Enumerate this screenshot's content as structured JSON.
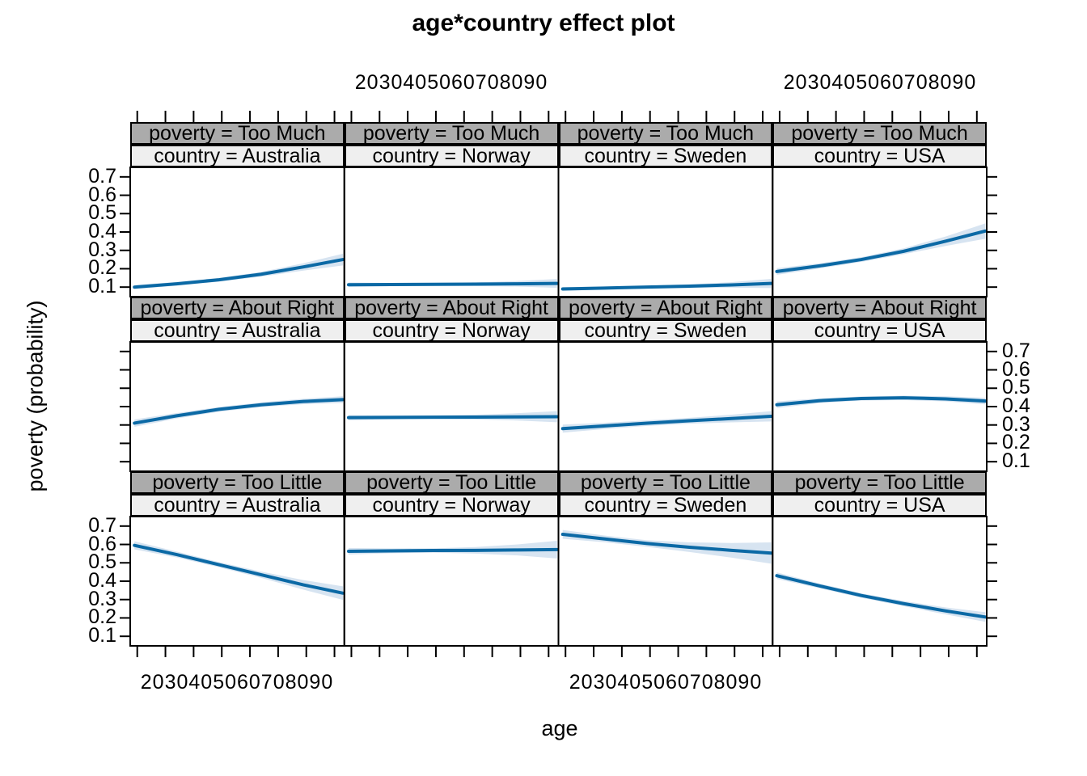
{
  "chart_data": {
    "type": "line",
    "title": "age*country effect plot",
    "xlabel": "age",
    "ylabel": "poverty (probability)",
    "facet_row_variable": "poverty",
    "facet_col_variable": "country",
    "facet_rows": [
      "Too Much",
      "About Right",
      "Too Little"
    ],
    "facet_cols": [
      "Australia",
      "Norway",
      "Sweden",
      "USA"
    ],
    "x_ticks": [
      20,
      30,
      40,
      50,
      60,
      70,
      80,
      90
    ],
    "x_tick_combined": "2030405060708090",
    "y_ticks": [
      "0.1",
      "0.2",
      "0.3",
      "0.4",
      "0.5",
      "0.6",
      "0.7"
    ],
    "xlim": [
      17.5,
      93.5
    ],
    "ylim": [
      0.048,
      0.752
    ],
    "grid": false,
    "legend": null,
    "ages": [
      19,
      34,
      49,
      64,
      79,
      93
    ],
    "panels": [
      {
        "poverty": "Too Much",
        "country": "Australia",
        "row_label": "poverty = Too Much",
        "col_label": "country = Australia",
        "fit": [
          0.1,
          0.118,
          0.14,
          0.17,
          0.21,
          0.25
        ],
        "lower": [
          0.088,
          0.108,
          0.13,
          0.157,
          0.19,
          0.218
        ],
        "upper": [
          0.112,
          0.128,
          0.15,
          0.183,
          0.23,
          0.282
        ]
      },
      {
        "poverty": "Too Much",
        "country": "Norway",
        "row_label": "poverty = Too Much",
        "col_label": "country = Norway",
        "fit": [
          0.113,
          0.114,
          0.115,
          0.116,
          0.118,
          0.12
        ],
        "lower": [
          0.101,
          0.105,
          0.107,
          0.106,
          0.103,
          0.096
        ],
        "upper": [
          0.125,
          0.123,
          0.123,
          0.126,
          0.133,
          0.144
        ]
      },
      {
        "poverty": "Too Much",
        "country": "Sweden",
        "row_label": "poverty = Too Much",
        "col_label": "country = Sweden",
        "fit": [
          0.09,
          0.095,
          0.1,
          0.105,
          0.112,
          0.12
        ],
        "lower": [
          0.08,
          0.087,
          0.092,
          0.095,
          0.097,
          0.095
        ],
        "upper": [
          0.1,
          0.103,
          0.108,
          0.115,
          0.127,
          0.145
        ]
      },
      {
        "poverty": "Too Much",
        "country": "USA",
        "row_label": "poverty = Too Much",
        "col_label": "country = USA",
        "fit": [
          0.185,
          0.215,
          0.25,
          0.295,
          0.35,
          0.405
        ],
        "lower": [
          0.167,
          0.201,
          0.237,
          0.279,
          0.324,
          0.363
        ],
        "upper": [
          0.203,
          0.229,
          0.263,
          0.311,
          0.376,
          0.447
        ]
      },
      {
        "poverty": "About Right",
        "country": "Australia",
        "row_label": "poverty = About Right",
        "col_label": "country = Australia",
        "fit": [
          0.31,
          0.35,
          0.385,
          0.41,
          0.428,
          0.438
        ],
        "lower": [
          0.29,
          0.335,
          0.372,
          0.397,
          0.413,
          0.42
        ],
        "upper": [
          0.33,
          0.365,
          0.398,
          0.423,
          0.443,
          0.456
        ]
      },
      {
        "poverty": "About Right",
        "country": "Norway",
        "row_label": "poverty = About Right",
        "col_label": "country = Norway",
        "fit": [
          0.34,
          0.341,
          0.342,
          0.343,
          0.344,
          0.345
        ],
        "lower": [
          0.326,
          0.33,
          0.332,
          0.33,
          0.324,
          0.315
        ],
        "upper": [
          0.354,
          0.352,
          0.352,
          0.356,
          0.364,
          0.375
        ]
      },
      {
        "poverty": "About Right",
        "country": "Sweden",
        "row_label": "poverty = About Right",
        "col_label": "country = Sweden",
        "fit": [
          0.28,
          0.295,
          0.31,
          0.323,
          0.335,
          0.347
        ],
        "lower": [
          0.258,
          0.278,
          0.295,
          0.307,
          0.314,
          0.319
        ],
        "upper": [
          0.302,
          0.312,
          0.325,
          0.339,
          0.356,
          0.375
        ]
      },
      {
        "poverty": "About Right",
        "country": "USA",
        "row_label": "poverty = About Right",
        "col_label": "country = USA",
        "fit": [
          0.41,
          0.432,
          0.444,
          0.448,
          0.442,
          0.43
        ],
        "lower": [
          0.392,
          0.419,
          0.433,
          0.436,
          0.428,
          0.412
        ],
        "upper": [
          0.428,
          0.445,
          0.455,
          0.46,
          0.456,
          0.448
        ]
      },
      {
        "poverty": "Too Little",
        "country": "Australia",
        "row_label": "poverty = Too Little",
        "col_label": "country = Australia",
        "fit": [
          0.595,
          0.545,
          0.49,
          0.435,
          0.38,
          0.335
        ],
        "lower": [
          0.573,
          0.529,
          0.476,
          0.418,
          0.354,
          0.298
        ],
        "upper": [
          0.617,
          0.561,
          0.504,
          0.452,
          0.406,
          0.372
        ]
      },
      {
        "poverty": "Too Little",
        "country": "Norway",
        "row_label": "poverty = Too Little",
        "col_label": "country = Norway",
        "fit": [
          0.563,
          0.565,
          0.567,
          0.568,
          0.57,
          0.572
        ],
        "lower": [
          0.545,
          0.552,
          0.555,
          0.55,
          0.54,
          0.524
        ],
        "upper": [
          0.581,
          0.578,
          0.579,
          0.586,
          0.6,
          0.62
        ]
      },
      {
        "poverty": "Too Little",
        "country": "Sweden",
        "row_label": "poverty = Too Little",
        "col_label": "country = Sweden",
        "fit": [
          0.655,
          0.63,
          0.605,
          0.585,
          0.568,
          0.553
        ],
        "lower": [
          0.631,
          0.612,
          0.587,
          0.559,
          0.528,
          0.495
        ],
        "upper": [
          0.679,
          0.648,
          0.623,
          0.611,
          0.608,
          0.611
        ]
      },
      {
        "poverty": "Too Little",
        "country": "USA",
        "row_label": "poverty = Too Little",
        "col_label": "country = USA",
        "fit": [
          0.43,
          0.375,
          0.322,
          0.278,
          0.238,
          0.205
        ],
        "lower": [
          0.412,
          0.362,
          0.31,
          0.264,
          0.219,
          0.179
        ],
        "upper": [
          0.448,
          0.388,
          0.334,
          0.292,
          0.257,
          0.231
        ]
      }
    ],
    "colors": {
      "line": "#0b69a5",
      "band": "#d7e4f1",
      "strip_poverty_bg": "#ababab",
      "strip_country_bg": "#efefef",
      "border": "#000000",
      "text": "#000000"
    }
  }
}
